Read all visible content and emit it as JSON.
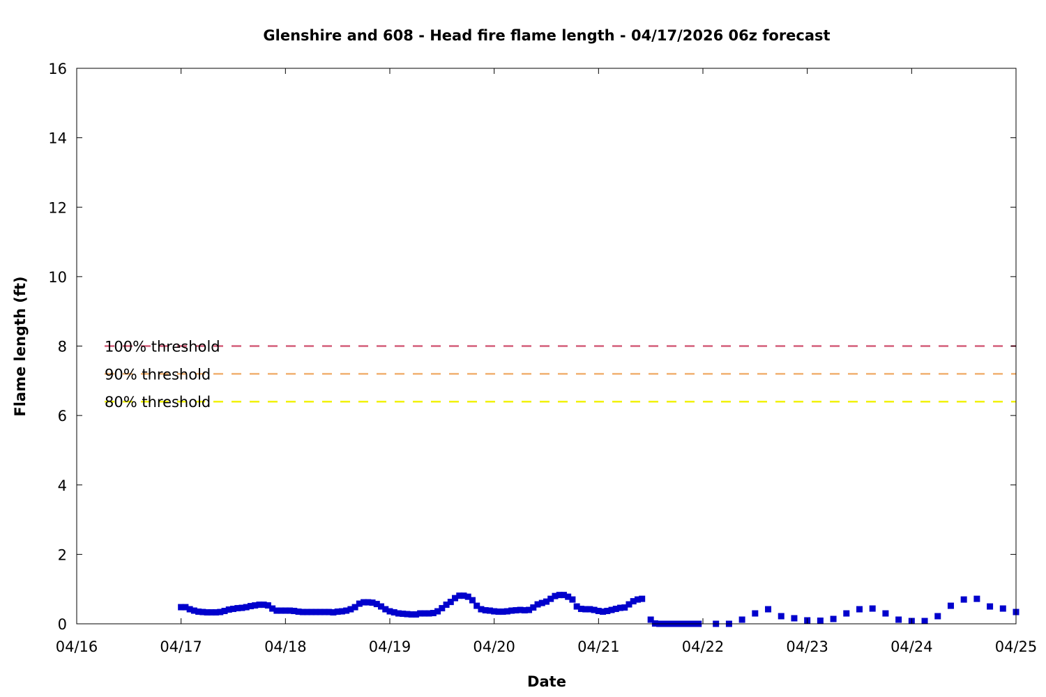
{
  "chart_data": {
    "type": "scatter",
    "title": "Glenshire and 608 - Head fire flame length - 04/17/2026 06z forecast",
    "xlabel": "Date",
    "ylabel": "Flame length (ft)",
    "xlim": [
      "04/16",
      "04/25"
    ],
    "ylim": [
      0,
      16
    ],
    "x_ticks": [
      "04/16",
      "04/17",
      "04/18",
      "04/19",
      "04/20",
      "04/21",
      "04/22",
      "04/23",
      "04/24",
      "04/25"
    ],
    "y_ticks": [
      "0",
      "2",
      "4",
      "6",
      "8",
      "10",
      "12",
      "14",
      "16"
    ],
    "grid": false,
    "series_color": "#0000cc",
    "thresholds": [
      {
        "label": "100% threshold",
        "value": 8.0,
        "color": "#d45f7a"
      },
      {
        "label": "90% threshold",
        "value": 7.2,
        "color": "#f0b070"
      },
      {
        "label": "80% threshold",
        "value": 6.4,
        "color": "#f2f200"
      }
    ],
    "series": [
      {
        "points": [
          [
            "04/17 00:00",
            0.48
          ],
          [
            "04/17 01:00",
            0.48
          ],
          [
            "04/17 02:00",
            0.42
          ],
          [
            "04/17 03:00",
            0.38
          ],
          [
            "04/17 04:00",
            0.35
          ],
          [
            "04/17 05:00",
            0.34
          ],
          [
            "04/17 06:00",
            0.33
          ],
          [
            "04/17 07:00",
            0.33
          ],
          [
            "04/17 08:00",
            0.33
          ],
          [
            "04/17 09:00",
            0.34
          ],
          [
            "04/17 10:00",
            0.37
          ],
          [
            "04/17 11:00",
            0.41
          ],
          [
            "04/17 12:00",
            0.43
          ],
          [
            "04/17 13:00",
            0.45
          ],
          [
            "04/17 14:00",
            0.46
          ],
          [
            "04/17 15:00",
            0.48
          ],
          [
            "04/17 16:00",
            0.51
          ],
          [
            "04/17 17:00",
            0.53
          ],
          [
            "04/17 18:00",
            0.55
          ],
          [
            "04/17 19:00",
            0.55
          ],
          [
            "04/17 20:00",
            0.53
          ],
          [
            "04/17 21:00",
            0.44
          ],
          [
            "04/17 22:00",
            0.38
          ],
          [
            "04/17 23:00",
            0.38
          ],
          [
            "04/18 00:00",
            0.38
          ],
          [
            "04/18 01:00",
            0.38
          ],
          [
            "04/18 02:00",
            0.37
          ],
          [
            "04/18 03:00",
            0.35
          ],
          [
            "04/18 04:00",
            0.34
          ],
          [
            "04/18 05:00",
            0.34
          ],
          [
            "04/18 06:00",
            0.34
          ],
          [
            "04/18 07:00",
            0.34
          ],
          [
            "04/18 08:00",
            0.34
          ],
          [
            "04/18 09:00",
            0.34
          ],
          [
            "04/18 10:00",
            0.34
          ],
          [
            "04/18 11:00",
            0.33
          ],
          [
            "04/18 12:00",
            0.35
          ],
          [
            "04/18 13:00",
            0.36
          ],
          [
            "04/18 14:00",
            0.38
          ],
          [
            "04/18 15:00",
            0.42
          ],
          [
            "04/18 16:00",
            0.48
          ],
          [
            "04/18 17:00",
            0.58
          ],
          [
            "04/18 18:00",
            0.62
          ],
          [
            "04/18 19:00",
            0.62
          ],
          [
            "04/18 20:00",
            0.61
          ],
          [
            "04/18 21:00",
            0.57
          ],
          [
            "04/18 22:00",
            0.5
          ],
          [
            "04/18 23:00",
            0.42
          ],
          [
            "04/19 00:00",
            0.36
          ],
          [
            "04/19 01:00",
            0.33
          ],
          [
            "04/19 02:00",
            0.3
          ],
          [
            "04/19 03:00",
            0.29
          ],
          [
            "04/19 04:00",
            0.28
          ],
          [
            "04/19 05:00",
            0.27
          ],
          [
            "04/19 06:00",
            0.27
          ],
          [
            "04/19 07:00",
            0.3
          ],
          [
            "04/19 08:00",
            0.3
          ],
          [
            "04/19 09:00",
            0.3
          ],
          [
            "04/19 10:00",
            0.31
          ],
          [
            "04/19 11:00",
            0.36
          ],
          [
            "04/19 12:00",
            0.45
          ],
          [
            "04/19 13:00",
            0.55
          ],
          [
            "04/19 14:00",
            0.63
          ],
          [
            "04/19 15:00",
            0.74
          ],
          [
            "04/19 16:00",
            0.81
          ],
          [
            "04/19 17:00",
            0.81
          ],
          [
            "04/19 18:00",
            0.78
          ],
          [
            "04/19 19:00",
            0.68
          ],
          [
            "04/19 20:00",
            0.52
          ],
          [
            "04/19 21:00",
            0.42
          ],
          [
            "04/19 22:00",
            0.39
          ],
          [
            "04/19 23:00",
            0.38
          ],
          [
            "04/20 00:00",
            0.36
          ],
          [
            "04/20 01:00",
            0.35
          ],
          [
            "04/20 02:00",
            0.35
          ],
          [
            "04/20 03:00",
            0.36
          ],
          [
            "04/20 04:00",
            0.38
          ],
          [
            "04/20 05:00",
            0.39
          ],
          [
            "04/20 06:00",
            0.4
          ],
          [
            "04/20 07:00",
            0.39
          ],
          [
            "04/20 08:00",
            0.4
          ],
          [
            "04/20 09:00",
            0.47
          ],
          [
            "04/20 10:00",
            0.56
          ],
          [
            "04/20 11:00",
            0.6
          ],
          [
            "04/20 12:00",
            0.64
          ],
          [
            "04/20 13:00",
            0.72
          ],
          [
            "04/20 14:00",
            0.8
          ],
          [
            "04/20 15:00",
            0.83
          ],
          [
            "04/20 16:00",
            0.83
          ],
          [
            "04/20 17:00",
            0.78
          ],
          [
            "04/20 18:00",
            0.7
          ],
          [
            "04/20 19:00",
            0.5
          ],
          [
            "04/20 20:00",
            0.43
          ],
          [
            "04/20 21:00",
            0.42
          ],
          [
            "04/20 22:00",
            0.42
          ],
          [
            "04/20 23:00",
            0.4
          ],
          [
            "04/21 00:00",
            0.37
          ],
          [
            "04/21 01:00",
            0.35
          ],
          [
            "04/21 02:00",
            0.37
          ],
          [
            "04/21 03:00",
            0.4
          ],
          [
            "04/21 04:00",
            0.43
          ],
          [
            "04/21 05:00",
            0.46
          ],
          [
            "04/21 06:00",
            0.47
          ],
          [
            "04/21 07:00",
            0.56
          ],
          [
            "04/21 08:00",
            0.65
          ],
          [
            "04/21 09:00",
            0.7
          ],
          [
            "04/21 10:00",
            0.72
          ],
          [
            "04/21 12:00",
            0.12
          ],
          [
            "04/21 13:00",
            0.01
          ],
          [
            "04/21 14:00",
            0.0
          ],
          [
            "04/21 15:00",
            0.0
          ],
          [
            "04/21 16:00",
            0.0
          ],
          [
            "04/21 17:00",
            0.0
          ],
          [
            "04/21 18:00",
            0.0
          ],
          [
            "04/21 19:00",
            0.0
          ],
          [
            "04/21 20:00",
            0.0
          ],
          [
            "04/21 21:00",
            0.0
          ],
          [
            "04/21 22:00",
            0.0
          ],
          [
            "04/21 23:00",
            0.0
          ],
          [
            "04/22 03:00",
            0.0
          ],
          [
            "04/22 06:00",
            0.0
          ],
          [
            "04/22 09:00",
            0.12
          ],
          [
            "04/22 12:00",
            0.3
          ],
          [
            "04/22 15:00",
            0.42
          ],
          [
            "04/22 18:00",
            0.22
          ],
          [
            "04/22 21:00",
            0.16
          ],
          [
            "04/23 00:00",
            0.1
          ],
          [
            "04/23 03:00",
            0.09
          ],
          [
            "04/23 06:00",
            0.14
          ],
          [
            "04/23 09:00",
            0.3
          ],
          [
            "04/23 12:00",
            0.42
          ],
          [
            "04/23 15:00",
            0.44
          ],
          [
            "04/23 18:00",
            0.3
          ],
          [
            "04/23 21:00",
            0.12
          ],
          [
            "04/24 00:00",
            0.08
          ],
          [
            "04/24 03:00",
            0.08
          ],
          [
            "04/24 06:00",
            0.22
          ],
          [
            "04/24 09:00",
            0.52
          ],
          [
            "04/24 12:00",
            0.7
          ],
          [
            "04/24 15:00",
            0.72
          ],
          [
            "04/24 18:00",
            0.5
          ],
          [
            "04/24 21:00",
            0.44
          ],
          [
            "04/25 00:00",
            0.34
          ]
        ]
      }
    ]
  }
}
